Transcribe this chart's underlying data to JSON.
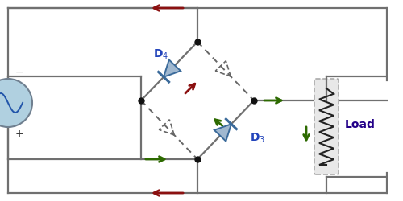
{
  "bg_color": "#ffffff",
  "wire_color": "#707070",
  "dashed_color": "#666666",
  "dark_red_arrow": "#8B1010",
  "green_arrow": "#2d6a00",
  "diode_fill": "#a0b8d0",
  "diode_edge": "#3a6a9a",
  "load_fill": "#e8e8e8",
  "load_edge": "#aaaaaa",
  "source_fill": "#b0d0e0",
  "source_edge": "#708090",
  "dot_color": "#111111",
  "label_D4": "D$_4$",
  "label_D3": "D$_3$",
  "label_Load": "Load",
  "label_minus": "−",
  "label_plus": "+",
  "text_color_D": "#2244bb",
  "text_color_load": "#220088",
  "wire_lw": 1.6,
  "diode_size": 20
}
